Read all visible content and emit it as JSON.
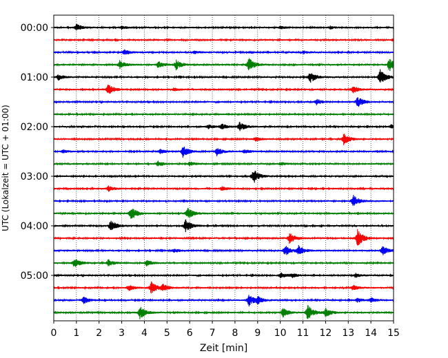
{
  "chart_data": {
    "type": "line",
    "title": "",
    "xlabel": "Zeit  [min]",
    "ylabel": "UTC (Lokalzeit = UTC + 01:00)",
    "xlim": [
      0,
      15
    ],
    "x_ticks": [
      "0",
      "1",
      "2",
      "3",
      "4",
      "5",
      "6",
      "7",
      "8",
      "9",
      "10",
      "11",
      "12",
      "13",
      "14",
      "15"
    ],
    "y_tick_labels": [
      "00:00",
      "01:00",
      "02:00",
      "03:00",
      "04:00",
      "05:00"
    ],
    "grid": "vertical dotted lines at each minute",
    "trace_interval_minutes": 15,
    "trace_colors": [
      "#000000",
      "#ff0000",
      "#0000ff",
      "#008000"
    ],
    "traces": [
      {
        "start": "00:00",
        "color": "#000000",
        "events": [
          [
            1.0,
            5
          ],
          [
            3.0,
            2
          ],
          [
            10.0,
            2
          ],
          [
            12.2,
            2
          ]
        ]
      },
      {
        "start": "00:15",
        "color": "#ff0000",
        "events": []
      },
      {
        "start": "00:30",
        "color": "#0000ff",
        "events": [
          [
            3.1,
            4
          ],
          [
            6.2,
            2
          ],
          [
            11.0,
            2
          ]
        ]
      },
      {
        "start": "00:45",
        "color": "#008000",
        "events": [
          [
            2.9,
            6
          ],
          [
            4.6,
            5
          ],
          [
            5.4,
            7
          ],
          [
            8.6,
            10
          ],
          [
            14.8,
            10
          ]
        ]
      },
      {
        "start": "01:00",
        "color": "#000000",
        "events": [
          [
            0.2,
            4
          ],
          [
            11.3,
            9
          ],
          [
            14.4,
            11
          ]
        ]
      },
      {
        "start": "01:15",
        "color": "#ff0000",
        "events": [
          [
            2.4,
            8
          ],
          [
            5.3,
            2
          ],
          [
            13.2,
            5
          ]
        ]
      },
      {
        "start": "01:30",
        "color": "#0000ff",
        "events": [
          [
            11.6,
            4
          ],
          [
            13.4,
            8
          ]
        ]
      },
      {
        "start": "01:45",
        "color": "#008000",
        "events": []
      },
      {
        "start": "02:00",
        "color": "#000000",
        "events": [
          [
            6.8,
            3
          ],
          [
            7.4,
            4
          ],
          [
            8.2,
            7
          ],
          [
            14.9,
            3
          ]
        ]
      },
      {
        "start": "02:15",
        "color": "#ff0000",
        "events": [
          [
            8.9,
            3
          ],
          [
            12.8,
            8
          ]
        ]
      },
      {
        "start": "02:30",
        "color": "#0000ff",
        "events": [
          [
            0.4,
            2
          ],
          [
            4.7,
            3
          ],
          [
            5.7,
            8
          ],
          [
            7.2,
            6
          ],
          [
            8.4,
            3
          ]
        ]
      },
      {
        "start": "02:45",
        "color": "#008000",
        "events": [
          [
            4.6,
            4
          ],
          [
            6.0,
            3
          ],
          [
            10.0,
            2
          ]
        ]
      },
      {
        "start": "03:00",
        "color": "#000000",
        "events": [
          [
            8.8,
            11
          ]
        ]
      },
      {
        "start": "03:15",
        "color": "#ff0000",
        "events": [
          [
            2.4,
            4
          ],
          [
            7.4,
            3
          ]
        ]
      },
      {
        "start": "03:30",
        "color": "#0000ff",
        "events": [
          [
            13.2,
            9
          ]
        ]
      },
      {
        "start": "03:45",
        "color": "#008000",
        "events": [
          [
            3.4,
            10
          ],
          [
            5.9,
            9
          ]
        ]
      },
      {
        "start": "04:00",
        "color": "#000000",
        "events": [
          [
            2.5,
            9
          ],
          [
            5.8,
            10
          ]
        ]
      },
      {
        "start": "04:15",
        "color": "#ff0000",
        "events": [
          [
            10.4,
            8
          ],
          [
            13.4,
            13
          ]
        ]
      },
      {
        "start": "04:30",
        "color": "#0000ff",
        "events": [
          [
            5.3,
            3
          ],
          [
            10.2,
            8
          ],
          [
            10.8,
            7
          ],
          [
            14.5,
            7
          ]
        ]
      },
      {
        "start": "04:45",
        "color": "#008000",
        "events": [
          [
            0.9,
            7
          ],
          [
            2.4,
            5
          ],
          [
            4.1,
            4
          ]
        ]
      },
      {
        "start": "05:00",
        "color": "#000000",
        "events": [
          [
            10.0,
            4
          ],
          [
            10.5,
            3
          ],
          [
            13.3,
            3
          ]
        ]
      },
      {
        "start": "05:15",
        "color": "#ff0000",
        "events": [
          [
            3.3,
            4
          ],
          [
            4.3,
            9
          ],
          [
            4.8,
            5
          ],
          [
            13.2,
            4
          ]
        ]
      },
      {
        "start": "05:30",
        "color": "#0000ff",
        "events": [
          [
            1.3,
            5
          ],
          [
            8.6,
            9
          ],
          [
            9.0,
            4
          ],
          [
            13.4,
            3
          ],
          [
            14.0,
            3
          ]
        ]
      },
      {
        "start": "05:45",
        "color": "#008000",
        "events": [
          [
            3.8,
            9
          ],
          [
            10.1,
            7
          ],
          [
            11.2,
            11
          ],
          [
            12.0,
            6
          ]
        ]
      }
    ]
  }
}
